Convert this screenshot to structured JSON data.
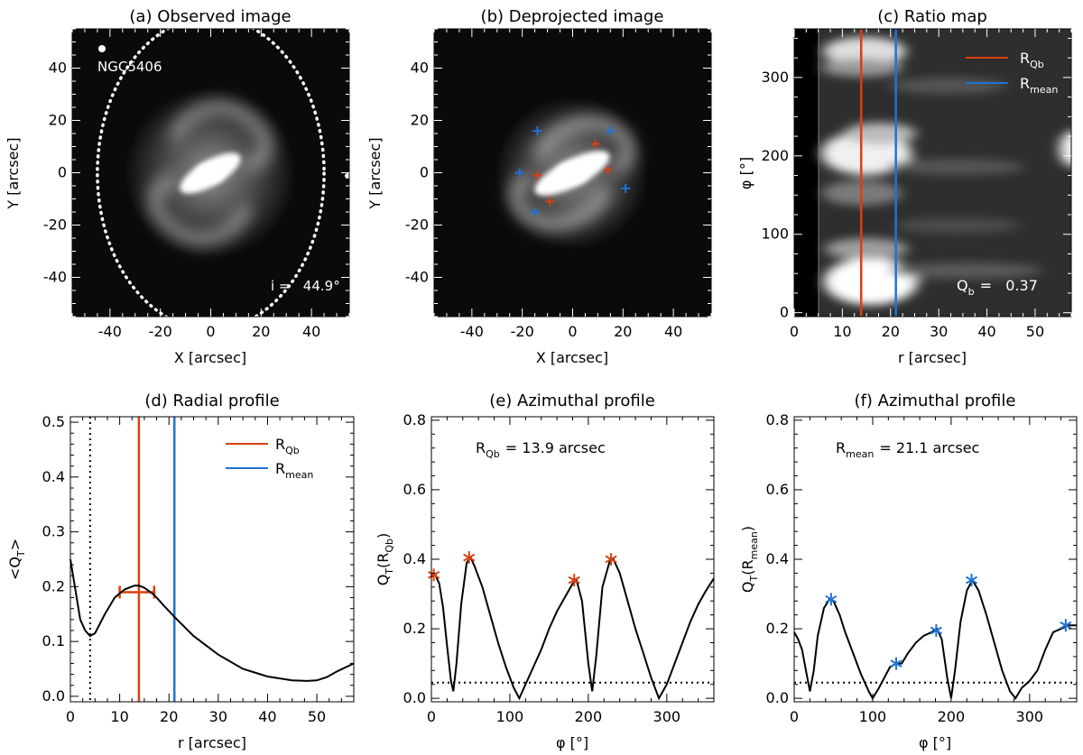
{
  "colors": {
    "red": "#d9400f",
    "blue": "#1e73d6",
    "black": "#000000"
  },
  "chart_data": [
    {
      "id": "a",
      "type": "image",
      "title": "(a) Observed image",
      "xlabel": "X [arcsec]",
      "ylabel": "Y [arcsec]",
      "xlim": [
        -55,
        55
      ],
      "ylim": [
        -55,
        55
      ],
      "xticks": [
        -40,
        -20,
        0,
        20,
        40
      ],
      "yticks": [
        -40,
        -20,
        0,
        20,
        40
      ],
      "galaxy_label": "NGC5406",
      "annotation": "i =   44.9°",
      "ellipse": {
        "center": [
          0,
          0
        ],
        "semi_x": 45,
        "semi_y": 62,
        "style": "dotted"
      },
      "bar_angle_deg": 30
    },
    {
      "id": "b",
      "type": "image",
      "title": "(b) Deprojected image",
      "xlabel": "X [arcsec]",
      "ylabel": "Y [arcsec]",
      "xlim": [
        -55,
        55
      ],
      "ylim": [
        -55,
        55
      ],
      "xticks": [
        -40,
        -20,
        0,
        20,
        40
      ],
      "yticks": [
        -40,
        -20,
        0,
        20,
        40
      ],
      "bar_angle_deg": 27,
      "red_markers": [
        [
          -14,
          -1
        ],
        [
          9,
          11
        ],
        [
          14,
          1
        ],
        [
          -9,
          -11
        ]
      ],
      "blue_markers": [
        [
          -14,
          16
        ],
        [
          15,
          16
        ],
        [
          21,
          -6
        ],
        [
          -15,
          -15
        ],
        [
          -21,
          0
        ]
      ]
    },
    {
      "id": "c",
      "type": "heatmap",
      "title": "(c) Ratio map",
      "xlabel": "r [arcsec]",
      "ylabel": "φ [°]",
      "xlim": [
        0,
        57.5
      ],
      "ylim": [
        -5,
        362
      ],
      "xticks": [
        0,
        10,
        20,
        30,
        40,
        50
      ],
      "yticks": [
        0,
        100,
        200,
        300
      ],
      "legend": [
        {
          "label": "R",
          "sub": "Qb",
          "color": "#d9400f"
        },
        {
          "label": "R",
          "sub": "mean",
          "color": "#1e73d6"
        }
      ],
      "vlines": [
        {
          "x": 13.9,
          "color": "#d9400f"
        },
        {
          "x": 21.1,
          "color": "#1e73d6"
        }
      ],
      "annotation": {
        "label": "Q",
        "sub": "b",
        "value": "=   0.37"
      },
      "peak_phis": [
        50,
        200,
        232,
        330
      ]
    },
    {
      "id": "d",
      "type": "line",
      "title": "(d) Radial profile",
      "xlabel": "r [arcsec]",
      "ylabel": "<Q",
      "ylabel_sub": "T",
      "ylabel_suffix": ">",
      "xlim": [
        0,
        57.5
      ],
      "ylim": [
        -0.01,
        0.51
      ],
      "xticks": [
        0,
        10,
        20,
        30,
        40,
        50
      ],
      "yticks": [
        0.0,
        0.1,
        0.2,
        0.3,
        0.4,
        0.5
      ],
      "x": [
        0,
        2,
        3,
        4,
        5,
        7,
        9,
        11,
        13,
        13.9,
        15,
        17,
        19,
        21.1,
        25,
        30,
        35,
        40,
        45,
        48,
        50,
        52,
        54,
        57.5
      ],
      "y": [
        0.25,
        0.14,
        0.12,
        0.11,
        0.115,
        0.15,
        0.18,
        0.195,
        0.202,
        0.202,
        0.198,
        0.185,
        0.165,
        0.145,
        0.11,
        0.076,
        0.05,
        0.036,
        0.029,
        0.028,
        0.029,
        0.035,
        0.045,
        0.06
      ],
      "vlines": [
        {
          "x": 4,
          "style": "dotted",
          "color": "#000000"
        },
        {
          "x": 13.9,
          "color": "#d9400f"
        },
        {
          "x": 21.1,
          "color": "#1e73d6"
        }
      ],
      "errorbar": {
        "x": 13.5,
        "y": 0.19,
        "xerr": [
          10,
          17
        ],
        "color": "#d9400f"
      },
      "legend": [
        {
          "label": "R",
          "sub": "Qb",
          "color": "#d9400f"
        },
        {
          "label": "R",
          "sub": "mean",
          "color": "#1e73d6"
        }
      ]
    },
    {
      "id": "e",
      "type": "line",
      "title": "(e) Azimuthal profile",
      "xlabel": "φ [°]",
      "ylabel": "Q",
      "ylabel_sub": "T",
      "ylabel_paren_sub": "Qb",
      "xlim": [
        0,
        360
      ],
      "ylim": [
        -0.01,
        0.81
      ],
      "xticks": [
        0,
        100,
        200,
        300
      ],
      "yticks": [
        0.0,
        0.2,
        0.4,
        0.6,
        0.8
      ],
      "annotation": {
        "label": "R",
        "sub": "Qb",
        "value": "= 13.9 arcsec"
      },
      "hline": 0.045,
      "x": [
        0,
        5,
        10,
        15,
        20,
        25,
        28,
        32,
        38,
        45,
        50,
        55,
        65,
        75,
        85,
        95,
        105,
        112,
        120,
        130,
        140,
        150,
        160,
        170,
        180,
        185,
        192,
        200,
        205,
        210,
        218,
        228,
        232,
        240,
        250,
        260,
        270,
        280,
        290,
        300,
        310,
        320,
        330,
        340,
        350,
        360
      ],
      "y": [
        0.35,
        0.355,
        0.33,
        0.26,
        0.15,
        0.05,
        0.02,
        0.1,
        0.27,
        0.39,
        0.405,
        0.38,
        0.32,
        0.24,
        0.16,
        0.09,
        0.03,
        0.0,
        0.04,
        0.09,
        0.14,
        0.2,
        0.25,
        0.29,
        0.33,
        0.34,
        0.28,
        0.1,
        0.02,
        0.12,
        0.32,
        0.4,
        0.4,
        0.36,
        0.28,
        0.2,
        0.13,
        0.06,
        0.0,
        0.04,
        0.1,
        0.16,
        0.22,
        0.27,
        0.31,
        0.345
      ],
      "markers": {
        "color": "#d9400f",
        "x": [
          3,
          48,
          182,
          229
        ],
        "y": [
          0.355,
          0.405,
          0.34,
          0.4
        ]
      }
    },
    {
      "id": "f",
      "type": "line",
      "title": "(f) Azimuthal profile",
      "xlabel": "φ [°]",
      "ylabel": "Q",
      "ylabel_sub": "T",
      "ylabel_paren_sub": "mean",
      "xlim": [
        0,
        360
      ],
      "ylim": [
        -0.01,
        0.81
      ],
      "xticks": [
        0,
        100,
        200,
        300
      ],
      "yticks": [
        0.0,
        0.2,
        0.4,
        0.6,
        0.8
      ],
      "annotation": {
        "label": "R",
        "sub": "mean",
        "value": "= 21.1 arcsec"
      },
      "hline": 0.045,
      "x": [
        0,
        5,
        10,
        15,
        20,
        25,
        30,
        38,
        45,
        50,
        58,
        65,
        75,
        85,
        95,
        100,
        108,
        115,
        122,
        130,
        137,
        145,
        155,
        165,
        175,
        182,
        188,
        195,
        200,
        205,
        212,
        220,
        227,
        235,
        245,
        255,
        265,
        275,
        282,
        290,
        300,
        310,
        320,
        330,
        340,
        350,
        360
      ],
      "y": [
        0.19,
        0.17,
        0.14,
        0.08,
        0.02,
        0.08,
        0.18,
        0.26,
        0.285,
        0.28,
        0.24,
        0.19,
        0.13,
        0.07,
        0.02,
        0.0,
        0.03,
        0.06,
        0.09,
        0.1,
        0.1,
        0.13,
        0.16,
        0.18,
        0.19,
        0.2,
        0.17,
        0.06,
        0.0,
        0.08,
        0.22,
        0.31,
        0.34,
        0.31,
        0.24,
        0.16,
        0.08,
        0.02,
        0.0,
        0.03,
        0.05,
        0.08,
        0.14,
        0.19,
        0.2,
        0.21,
        0.21
      ],
      "markers": {
        "color": "#1e73d6",
        "x": [
          47,
          130,
          181,
          226,
          346
        ],
        "y": [
          0.285,
          0.1,
          0.195,
          0.34,
          0.21
        ]
      }
    }
  ]
}
